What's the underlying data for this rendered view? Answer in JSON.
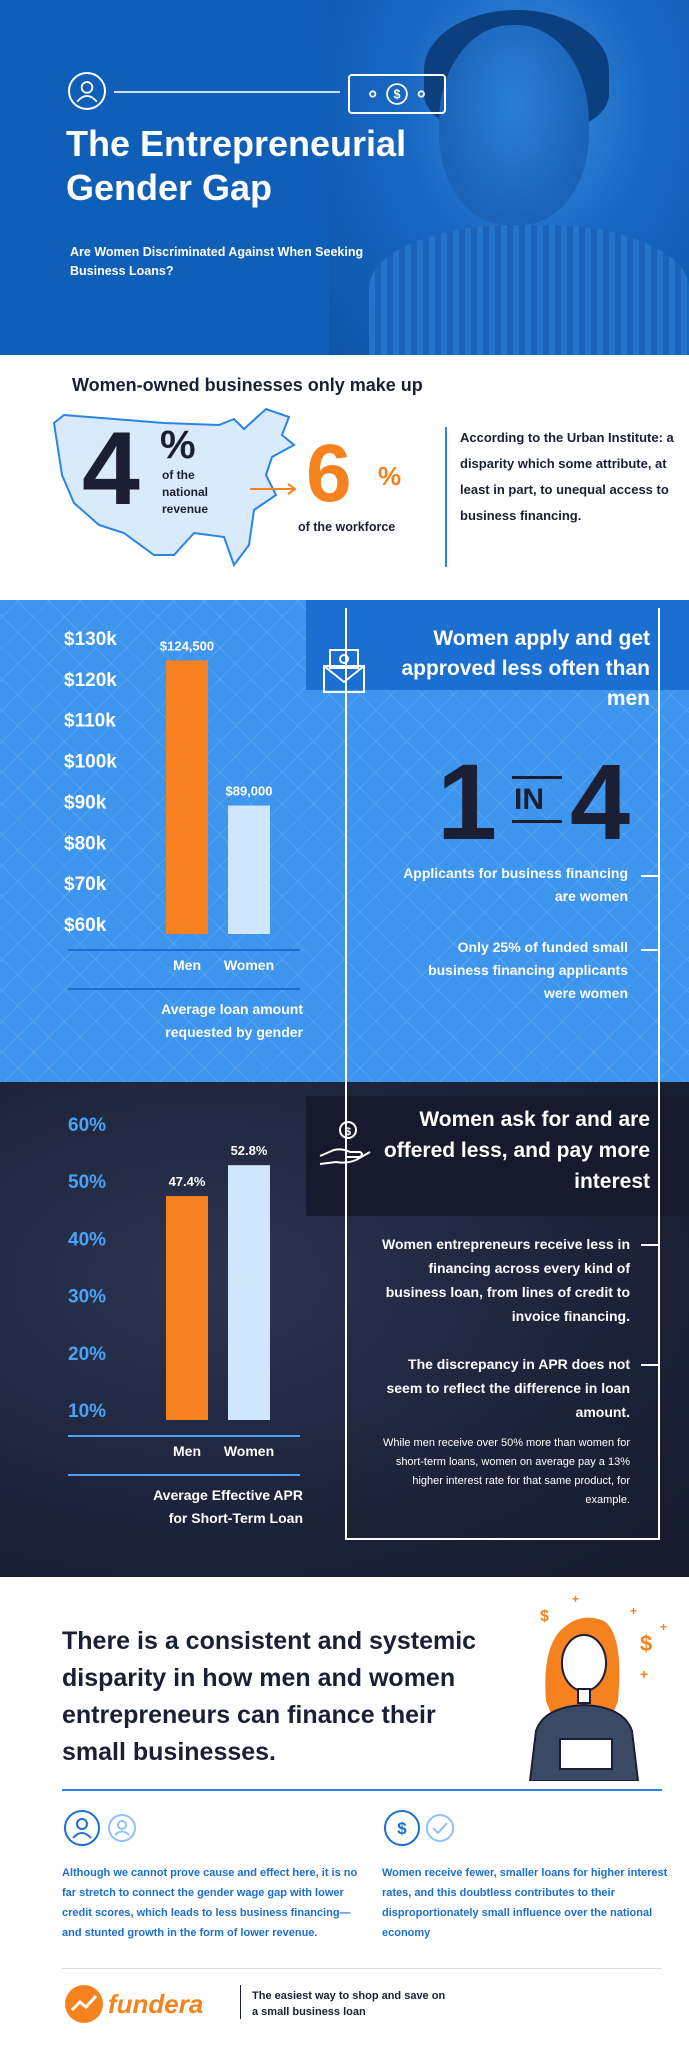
{
  "hero": {
    "title": "The Entrepreneurial Gender Gap",
    "subtitle": "Are Women Discriminated Against When Seeking Business Loans?"
  },
  "gap": {
    "intro": "Women-owned businesses only make up",
    "revenue_value": "4",
    "revenue_pct": "%",
    "revenue_label": "of the national revenue",
    "workforce_value": "6",
    "workforce_pct": "%",
    "workforce_label": "of the workforce",
    "source_text": "According to the Urban Institute: a disparity which some attribute, at least in part, to unequal access to business financing."
  },
  "approval": {
    "headline": "Women apply and get approved less often than men",
    "ratio_left": "1",
    "ratio_middle": "IN",
    "ratio_right": "4",
    "fact1": "Applicants for business financing are women",
    "fact2": "Only 25% of funded small business financing applicants were women"
  },
  "interest": {
    "headline": "Women ask for and are offered less, and pay more interest",
    "fact1": "Women entrepreneurs receive less in financing across every kind of business loan, from lines of credit to invoice financing.",
    "fact2": "The discrepancy in APR does not seem to reflect the difference in loan amount.",
    "note": "While men receive over 50% more than women for short-term loans, women on average pay a 13% higher interest rate for that same product, for example."
  },
  "chart_data": [
    {
      "type": "bar",
      "categories": [
        "Men",
        "Women"
      ],
      "values": [
        124500,
        89000
      ],
      "value_labels": [
        "$124,500",
        "$89,000"
      ],
      "ylim": [
        60000,
        130000
      ],
      "yticks": [
        "$130k",
        "$120k",
        "$110k",
        "$100k",
        "$90k",
        "$80k",
        "$70k",
        "$60k"
      ],
      "caption": "Average loan amount requested by gender",
      "colors": [
        "#f5821f",
        "#cfe6fb"
      ]
    },
    {
      "type": "bar",
      "categories": [
        "Men",
        "Women"
      ],
      "values": [
        47.4,
        52.8
      ],
      "value_labels": [
        "47.4%",
        "52.8%"
      ],
      "ylim": [
        10,
        60
      ],
      "yticks": [
        "60%",
        "50%",
        "40%",
        "30%",
        "20%",
        "10%"
      ],
      "caption": "Average Effective APR for Short-Term Loan",
      "colors": [
        "#f5821f",
        "#cfe6fb"
      ]
    }
  ],
  "conclusion": {
    "statement": "There is a consistent and systemic disparity in how men and women entrepreneurs can finance their small businesses.",
    "col1": "Although we cannot prove cause and effect here, it is no far stretch to connect the gender wage gap with lower credit scores, which leads to less business financing—and stunted growth in the form of lower revenue.",
    "col2": "Women receive fewer, smaller loans for higher interest rates, and this doubtless contributes to their disproportionately small influence over the national economy"
  },
  "footer": {
    "logo_text": "fundera",
    "tagline": "The easiest way to shop and save on a small business loan"
  },
  "colors": {
    "orange": "#f5821f",
    "navy": "#1a1f36",
    "blue": "#3d95ee",
    "dark_blue": "#1a6fd0",
    "dark_bg": "#1c2238"
  }
}
